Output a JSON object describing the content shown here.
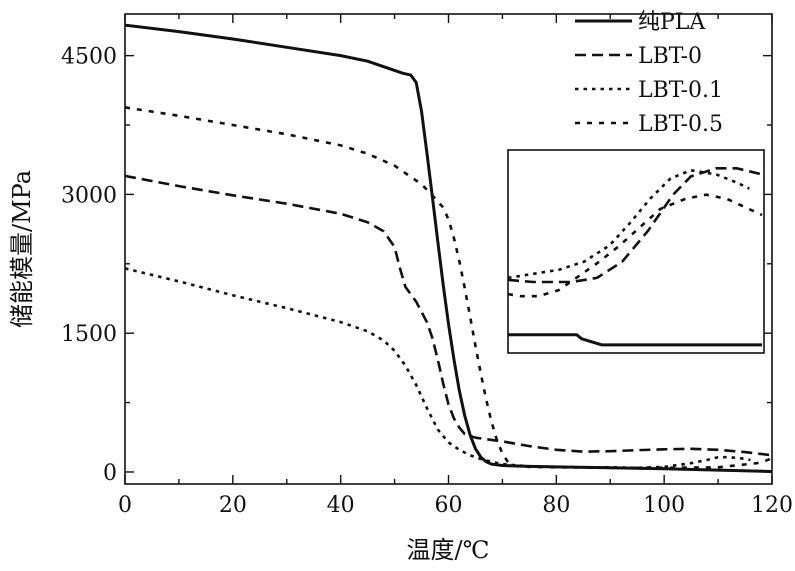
{
  "chart_data": {
    "type": "line",
    "xlabel": "温度/℃",
    "ylabel": "储能模量/MPa",
    "xlim": [
      0,
      120
    ],
    "ylim": [
      -130,
      4950
    ],
    "xticks": [
      "0",
      "20",
      "40",
      "60",
      "80",
      "100",
      "120"
    ],
    "yticks": [
      "0",
      "1500",
      "3000",
      "4500"
    ],
    "grid": false,
    "legend_position": "top-right",
    "series": [
      {
        "name": "纯PLA",
        "style": "solid",
        "points": [
          [
            0,
            4830
          ],
          [
            10,
            4760
          ],
          [
            20,
            4680
          ],
          [
            30,
            4590
          ],
          [
            40,
            4500
          ],
          [
            45,
            4440
          ],
          [
            50,
            4340
          ],
          [
            51.5,
            4310
          ],
          [
            53,
            4290
          ],
          [
            54,
            4210
          ],
          [
            55,
            3900
          ],
          [
            56,
            3450
          ],
          [
            57,
            2980
          ],
          [
            58,
            2500
          ],
          [
            59,
            2030
          ],
          [
            60,
            1600
          ],
          [
            61,
            1220
          ],
          [
            62,
            880
          ],
          [
            63,
            610
          ],
          [
            64,
            400
          ],
          [
            65,
            250
          ],
          [
            66,
            160
          ],
          [
            67,
            110
          ],
          [
            68,
            85
          ],
          [
            70,
            70
          ],
          [
            75,
            60
          ],
          [
            80,
            55
          ],
          [
            90,
            45
          ],
          [
            100,
            35
          ],
          [
            110,
            20
          ],
          [
            120,
            5
          ]
        ]
      },
      {
        "name": "LBT-0",
        "style": "dashed",
        "points": [
          [
            0,
            3200
          ],
          [
            10,
            3090
          ],
          [
            20,
            2990
          ],
          [
            30,
            2900
          ],
          [
            40,
            2790
          ],
          [
            45,
            2700
          ],
          [
            48,
            2600
          ],
          [
            50,
            2430
          ],
          [
            51,
            2200
          ],
          [
            52,
            2000
          ],
          [
            54,
            1840
          ],
          [
            56,
            1620
          ],
          [
            57,
            1450
          ],
          [
            58,
            1220
          ],
          [
            59,
            960
          ],
          [
            60,
            730
          ],
          [
            61,
            580
          ],
          [
            62,
            480
          ],
          [
            63,
            410
          ],
          [
            65,
            370
          ],
          [
            70,
            330
          ],
          [
            75,
            280
          ],
          [
            80,
            240
          ],
          [
            85,
            220
          ],
          [
            90,
            225
          ],
          [
            95,
            235
          ],
          [
            100,
            245
          ],
          [
            105,
            250
          ],
          [
            110,
            240
          ],
          [
            115,
            215
          ],
          [
            120,
            180
          ]
        ]
      },
      {
        "name": "LBT-0.1",
        "style": "dotted",
        "points": [
          [
            0,
            2200
          ],
          [
            10,
            2060
          ],
          [
            20,
            1910
          ],
          [
            30,
            1770
          ],
          [
            40,
            1620
          ],
          [
            45,
            1520
          ],
          [
            48,
            1420
          ],
          [
            50,
            1310
          ],
          [
            52,
            1150
          ],
          [
            54,
            940
          ],
          [
            56,
            690
          ],
          [
            58,
            460
          ],
          [
            60,
            320
          ],
          [
            62,
            240
          ],
          [
            64,
            180
          ],
          [
            66,
            140
          ],
          [
            68,
            110
          ],
          [
            70,
            85
          ],
          [
            75,
            60
          ],
          [
            80,
            55
          ],
          [
            85,
            50
          ],
          [
            90,
            50
          ],
          [
            95,
            45
          ],
          [
            100,
            55
          ],
          [
            105,
            95
          ],
          [
            108,
            130
          ],
          [
            110,
            160
          ],
          [
            112,
            160
          ],
          [
            114,
            150
          ],
          [
            116,
            130
          ]
        ]
      },
      {
        "name": "LBT-0.5",
        "style": "dotted-wide",
        "points": [
          [
            0,
            3940
          ],
          [
            10,
            3850
          ],
          [
            20,
            3750
          ],
          [
            30,
            3650
          ],
          [
            40,
            3530
          ],
          [
            45,
            3440
          ],
          [
            50,
            3310
          ],
          [
            55,
            3110
          ],
          [
            57,
            2990
          ],
          [
            59,
            2860
          ],
          [
            60,
            2730
          ],
          [
            61,
            2530
          ],
          [
            62,
            2280
          ],
          [
            63,
            1990
          ],
          [
            64,
            1680
          ],
          [
            65,
            1360
          ],
          [
            66,
            1060
          ],
          [
            67,
            780
          ],
          [
            68,
            540
          ],
          [
            69,
            340
          ],
          [
            70,
            200
          ],
          [
            71,
            110
          ],
          [
            72,
            70
          ],
          [
            75,
            55
          ],
          [
            80,
            50
          ],
          [
            90,
            45
          ],
          [
            100,
            45
          ],
          [
            110,
            50
          ],
          [
            118,
            100
          ],
          [
            120,
            150
          ]
        ]
      }
    ],
    "inset": {
      "series": [
        {
          "name": "纯PLA",
          "style": "solid",
          "points": [
            [
              0,
              0.91
            ],
            [
              0.27,
              0.91
            ],
            [
              0.29,
              0.93
            ],
            [
              0.37,
              0.96
            ],
            [
              1.0,
              0.96
            ]
          ]
        },
        {
          "name": "LBT-0",
          "style": "dashed",
          "points": [
            [
              0,
              0.64
            ],
            [
              0.1,
              0.65
            ],
            [
              0.25,
              0.65
            ],
            [
              0.35,
              0.63
            ],
            [
              0.45,
              0.55
            ],
            [
              0.55,
              0.4
            ],
            [
              0.65,
              0.22
            ],
            [
              0.72,
              0.13
            ],
            [
              0.82,
              0.09
            ],
            [
              0.9,
              0.09
            ],
            [
              1.0,
              0.12
            ]
          ]
        },
        {
          "name": "LBT-0.1",
          "style": "dotted",
          "points": [
            [
              0,
              0.63
            ],
            [
              0.1,
              0.61
            ],
            [
              0.2,
              0.59
            ],
            [
              0.3,
              0.55
            ],
            [
              0.4,
              0.47
            ],
            [
              0.48,
              0.36
            ],
            [
              0.56,
              0.24
            ],
            [
              0.64,
              0.14
            ],
            [
              0.72,
              0.1
            ],
            [
              0.82,
              0.12
            ],
            [
              0.9,
              0.16
            ],
            [
              0.95,
              0.19
            ]
          ]
        },
        {
          "name": "LBT-0.5",
          "style": "dotted-wide",
          "points": [
            [
              0,
              0.71
            ],
            [
              0.05,
              0.72
            ],
            [
              0.12,
              0.72
            ],
            [
              0.2,
              0.69
            ],
            [
              0.28,
              0.62
            ],
            [
              0.36,
              0.55
            ],
            [
              0.44,
              0.47
            ],
            [
              0.52,
              0.38
            ],
            [
              0.6,
              0.29
            ],
            [
              0.7,
              0.24
            ],
            [
              0.78,
              0.22
            ],
            [
              0.86,
              0.24
            ],
            [
              0.93,
              0.28
            ],
            [
              1.0,
              0.32
            ]
          ]
        }
      ]
    }
  }
}
